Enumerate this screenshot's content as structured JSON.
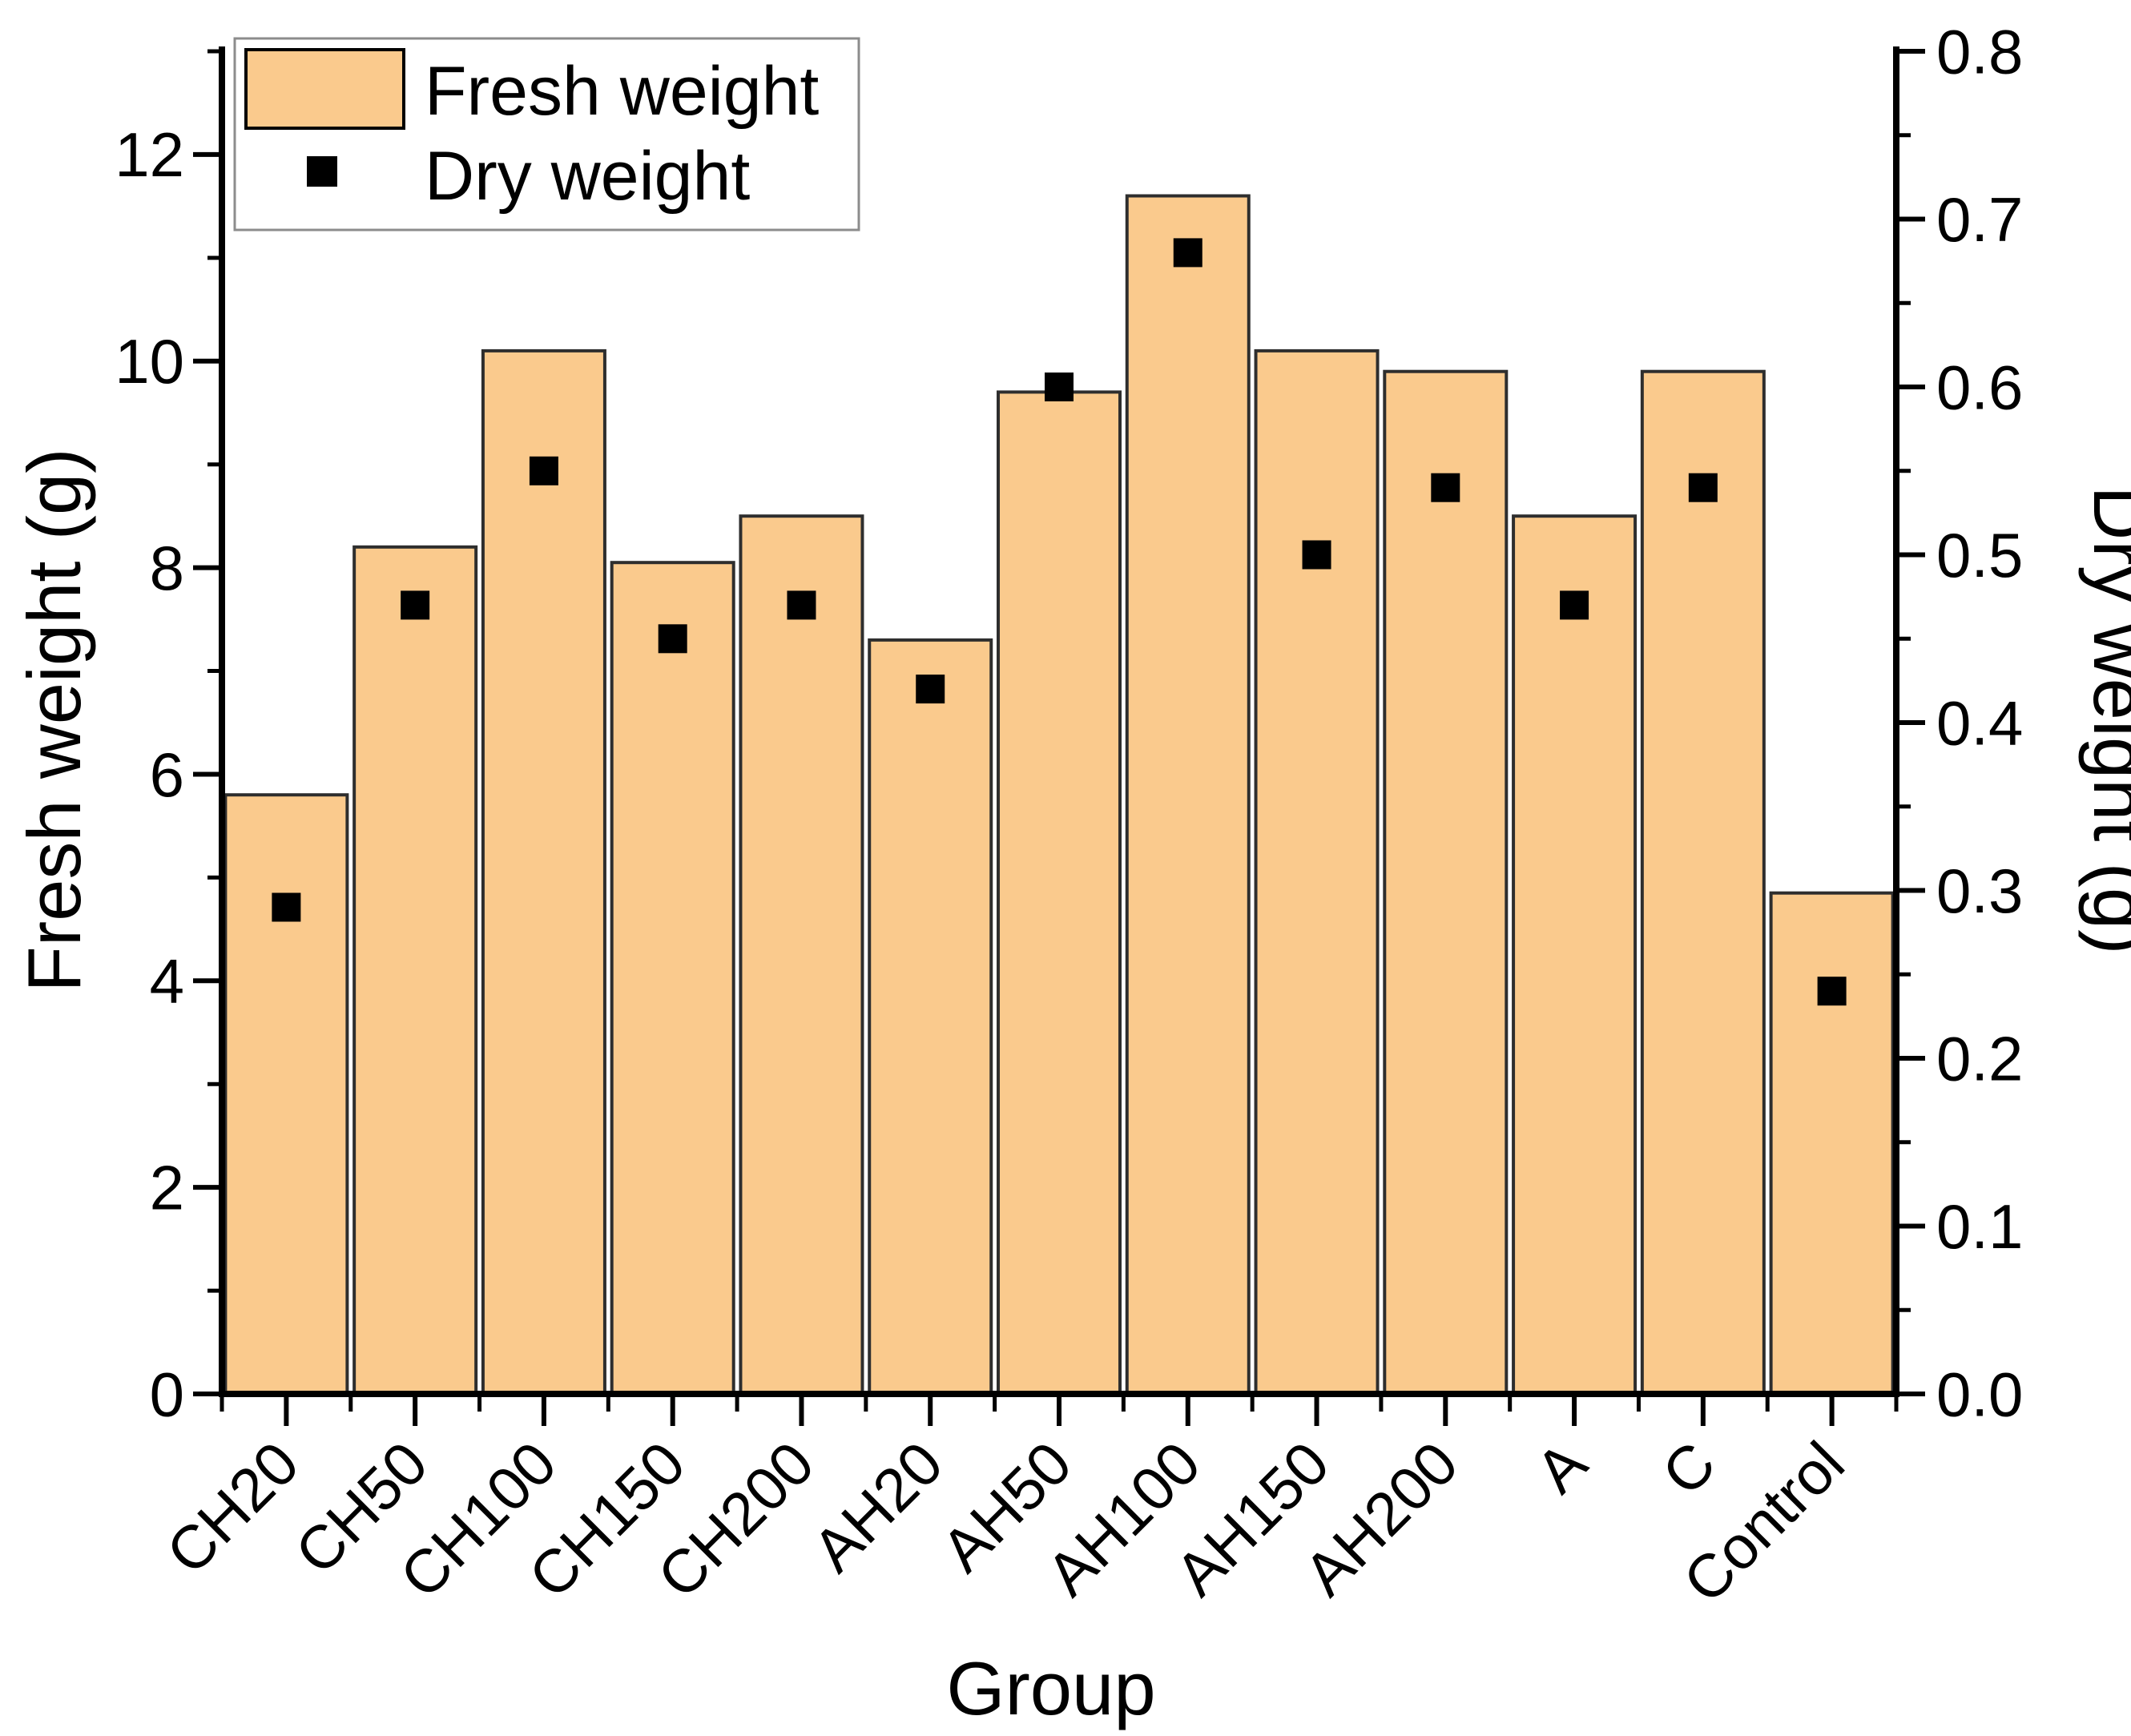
{
  "chart_data": {
    "type": "bar",
    "categories": [
      "CH20",
      "CH50",
      "CH100",
      "CH150",
      "CH200",
      "AH20",
      "AH50",
      "AH100",
      "AH150",
      "AH200",
      "A",
      "C",
      "Control"
    ],
    "series": [
      {
        "name": "Fresh weight",
        "type": "bar",
        "axis": "left",
        "values": [
          5.8,
          8.2,
          10.1,
          8.05,
          8.5,
          7.3,
          9.7,
          11.6,
          10.1,
          9.9,
          8.5,
          9.9,
          4.85
        ]
      },
      {
        "name": "Dry weight",
        "type": "scatter",
        "marker": "square",
        "axis": "right",
        "values": [
          0.29,
          0.47,
          0.55,
          0.45,
          0.47,
          0.42,
          0.6,
          0.68,
          0.5,
          0.54,
          0.47,
          0.54,
          0.24
        ]
      }
    ],
    "xlabel": "Group",
    "ylabel_left": "Fresh weight (g)",
    "ylabel_right": "Dry weight (g)",
    "ylim_left": [
      0,
      13
    ],
    "ylim_right": [
      0,
      0.8
    ],
    "yticks_left": [
      "0",
      "2",
      "4",
      "6",
      "8",
      "10",
      "12"
    ],
    "yticks_minor_left": [
      1,
      3,
      5,
      7,
      9,
      11,
      13
    ],
    "yticks_right": [
      "0.0",
      "0.1",
      "0.2",
      "0.3",
      "0.4",
      "0.5",
      "0.6",
      "0.7",
      "0.8"
    ],
    "yticks_minor_right": [
      0.05,
      0.15,
      0.25,
      0.35,
      0.45,
      0.55,
      0.65,
      0.75
    ],
    "grid": false,
    "legend_position": "top-left"
  },
  "legend": {
    "items": [
      {
        "label": "Fresh weight",
        "swatch": "bar"
      },
      {
        "label": "Dry weight",
        "swatch": "square"
      }
    ]
  },
  "colors": {
    "bar_fill": "#FACA8D",
    "bar_edge": "#2E2E2E",
    "marker": "#000000",
    "axis": "#000000",
    "legend_border": "#8C8C8C",
    "background": "#FFFFFF"
  }
}
